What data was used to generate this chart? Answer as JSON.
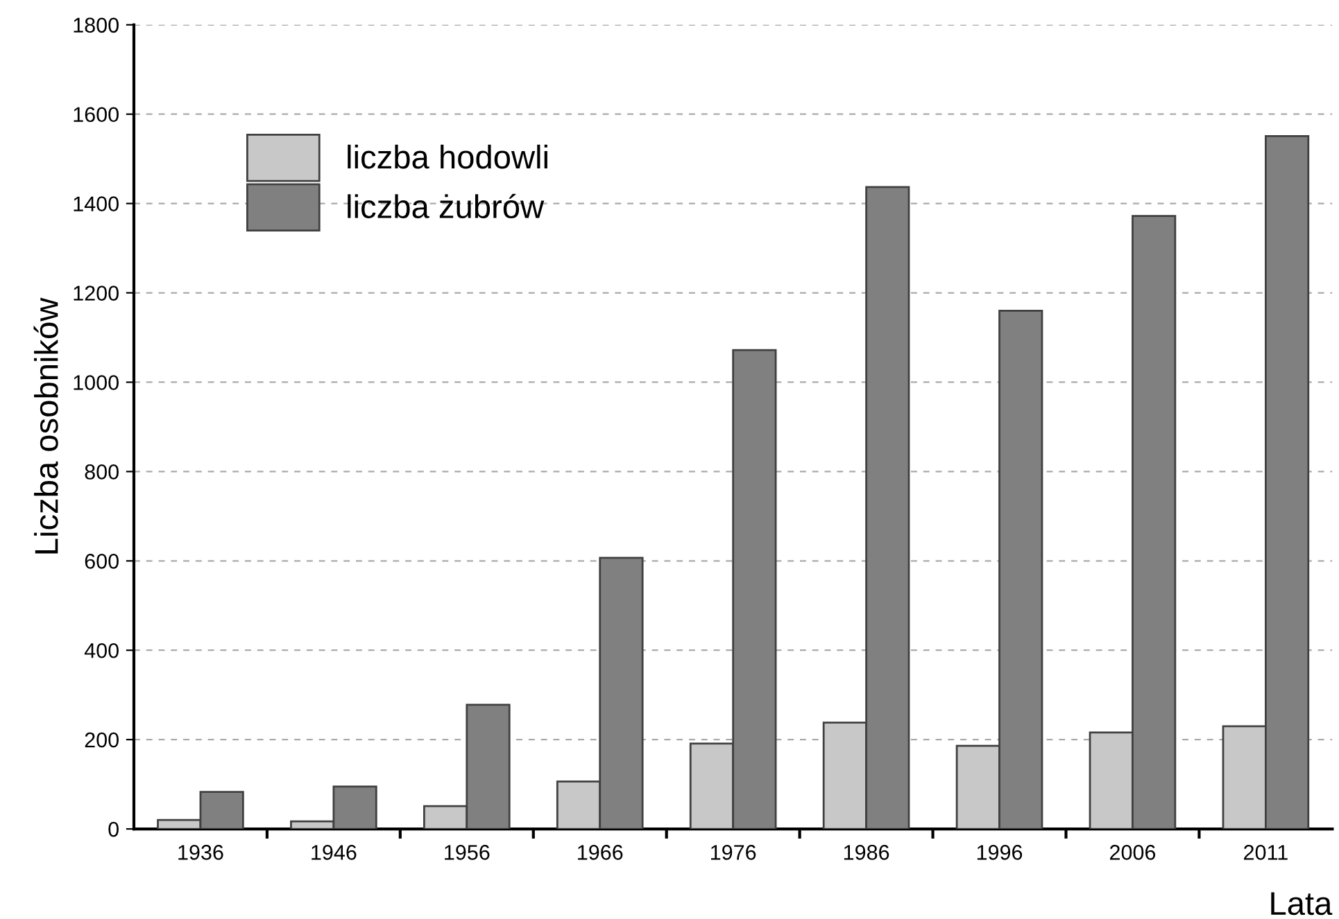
{
  "chart_data": {
    "type": "bar",
    "xlabel": "Lata",
    "ylabel": "Liczba osobników",
    "categories": [
      "1936",
      "1946",
      "1956",
      "1966",
      "1976",
      "1986",
      "1996",
      "2006",
      "2011"
    ],
    "series": [
      {
        "name": "liczba hodowli",
        "color": "#c8c8c8",
        "values": [
          20,
          17,
          51,
          106,
          191,
          238,
          186,
          216,
          230
        ]
      },
      {
        "name": "liczba żubrów",
        "color": "#808080",
        "values": [
          83,
          95,
          278,
          607,
          1072,
          1437,
          1160,
          1372,
          1551
        ]
      }
    ],
    "ylim": [
      0,
      1800
    ],
    "yticks": [
      0,
      200,
      400,
      600,
      800,
      1000,
      1200,
      1400,
      1600,
      1800
    ],
    "grid": "y",
    "legend": "top left"
  }
}
